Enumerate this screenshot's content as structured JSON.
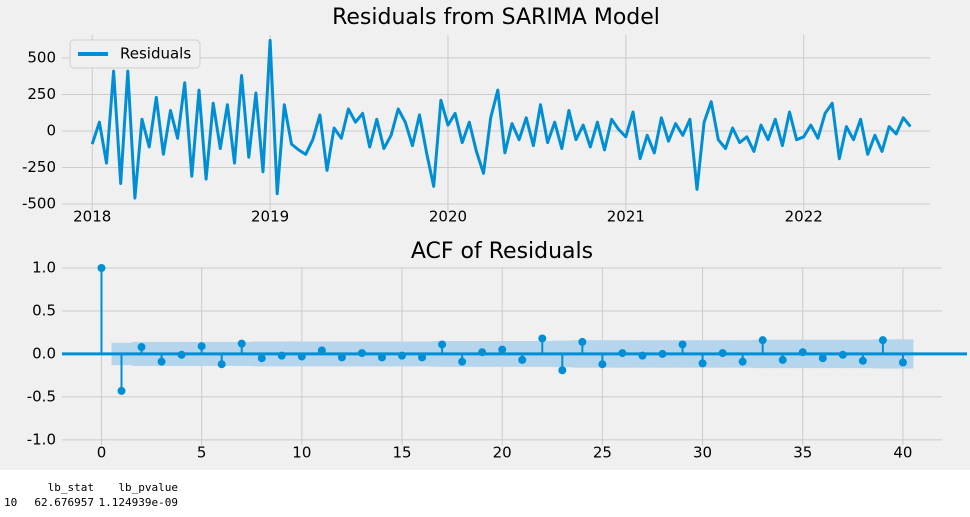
{
  "chart_data": [
    {
      "type": "line",
      "title": "Residuals from SARIMA Model",
      "x": [
        2018.0,
        2018.04,
        2018.08,
        2018.12,
        2018.16,
        2018.2,
        2018.24,
        2018.28,
        2018.32,
        2018.36,
        2018.4,
        2018.44,
        2018.48,
        2018.52,
        2018.56,
        2018.6,
        2018.64,
        2018.68,
        2018.72,
        2018.76,
        2018.8,
        2018.84,
        2018.88,
        2018.92,
        2018.96,
        2019.0,
        2019.04,
        2019.08,
        2019.12,
        2019.16,
        2019.2,
        2019.24,
        2019.28,
        2019.32,
        2019.36,
        2019.4,
        2019.44,
        2019.48,
        2019.52,
        2019.56,
        2019.6,
        2019.64,
        2019.68,
        2019.72,
        2019.76,
        2019.8,
        2019.84,
        2019.88,
        2019.92,
        2019.96,
        2020.0,
        2020.04,
        2020.08,
        2020.12,
        2020.16,
        2020.2,
        2020.24,
        2020.28,
        2020.32,
        2020.36,
        2020.4,
        2020.44,
        2020.48,
        2020.52,
        2020.56,
        2020.6,
        2020.64,
        2020.68,
        2020.72,
        2020.76,
        2020.8,
        2020.84,
        2020.88,
        2020.92,
        2020.96,
        2021.0,
        2021.04,
        2021.08,
        2021.12,
        2021.16,
        2021.2,
        2021.24,
        2021.28,
        2021.32,
        2021.36,
        2021.4,
        2021.44,
        2021.48,
        2021.52,
        2021.56,
        2021.6,
        2021.64,
        2021.68,
        2021.72,
        2021.76,
        2021.8,
        2021.84,
        2021.88,
        2021.92,
        2021.96,
        2022.0,
        2022.04,
        2022.08,
        2022.12,
        2022.16,
        2022.2,
        2022.24,
        2022.28,
        2022.32,
        2022.36,
        2022.4,
        2022.44,
        2022.48,
        2022.52,
        2022.56,
        2022.6
      ],
      "series": [
        {
          "name": "Residuals",
          "color": "#008fd5",
          "values": [
            -90,
            60,
            -220,
            410,
            -360,
            410,
            -460,
            80,
            -110,
            230,
            -160,
            140,
            -50,
            330,
            -310,
            280,
            -330,
            190,
            -120,
            180,
            -220,
            380,
            -180,
            260,
            -280,
            620,
            -430,
            180,
            -90,
            -130,
            -160,
            -60,
            110,
            -270,
            20,
            -50,
            150,
            60,
            120,
            -110,
            80,
            -120,
            -30,
            150,
            60,
            -100,
            110,
            -150,
            -380,
            210,
            40,
            120,
            -80,
            60,
            -140,
            -290,
            90,
            280,
            -150,
            50,
            -60,
            90,
            -100,
            180,
            -80,
            60,
            -120,
            140,
            -60,
            40,
            -110,
            60,
            -130,
            80,
            10,
            -40,
            130,
            -190,
            -30,
            -150,
            90,
            -70,
            50,
            -30,
            80,
            -400,
            60,
            200,
            -60,
            -120,
            20,
            -80,
            -40,
            -140,
            40,
            -60,
            80,
            -100,
            130,
            -60,
            -40,
            40,
            -50,
            120,
            190,
            -190,
            30,
            -60,
            80,
            -160,
            -30,
            -140,
            30,
            -20,
            90,
            30
          ]
        }
      ],
      "xlim": [
        2017.83,
        2022.71
      ],
      "xticks": [
        2018,
        2019,
        2020,
        2021,
        2022
      ],
      "ylim": [
        -555,
        657
      ],
      "yticks": [
        -500,
        -250,
        0,
        250,
        500
      ],
      "grid": true,
      "legend": "upper left"
    },
    {
      "type": "stem",
      "title": "ACF of Residuals",
      "x": [
        0,
        1,
        2,
        3,
        4,
        5,
        6,
        7,
        8,
        9,
        10,
        11,
        12,
        13,
        14,
        15,
        16,
        17,
        18,
        19,
        20,
        21,
        22,
        23,
        24,
        25,
        26,
        27,
        28,
        29,
        30,
        31,
        32,
        33,
        34,
        35,
        36,
        37,
        38,
        39,
        40
      ],
      "values": [
        1.0,
        -0.43,
        0.08,
        -0.09,
        -0.01,
        0.09,
        -0.12,
        0.12,
        -0.05,
        -0.02,
        -0.03,
        0.04,
        -0.04,
        0.01,
        -0.04,
        -0.02,
        -0.04,
        0.11,
        -0.09,
        0.02,
        0.05,
        -0.07,
        0.18,
        -0.19,
        0.14,
        -0.12,
        0.01,
        -0.02,
        0.0,
        0.11,
        -0.11,
        0.01,
        -0.09,
        0.16,
        -0.07,
        0.02,
        -0.05,
        -0.01,
        -0.08,
        0.16,
        -0.1
      ],
      "color": "#008fd5",
      "ci": [
        null,
        0.13,
        0.14,
        0.14,
        0.14,
        0.14,
        0.14,
        0.14,
        0.145,
        0.145,
        0.145,
        0.145,
        0.145,
        0.145,
        0.145,
        0.145,
        0.145,
        0.15,
        0.15,
        0.15,
        0.15,
        0.15,
        0.15,
        0.155,
        0.16,
        0.16,
        0.16,
        0.16,
        0.16,
        0.16,
        0.16,
        0.16,
        0.16,
        0.165,
        0.165,
        0.165,
        0.165,
        0.165,
        0.165,
        0.17,
        0.17
      ],
      "ci_color": "#b5d5ec",
      "xlim": [
        -1.97,
        41.95
      ],
      "xticks": [
        0,
        5,
        10,
        15,
        20,
        25,
        30,
        35,
        40
      ],
      "ylim": [
        -1.06,
        1.0
      ],
      "yticks": [
        {
          "value": -1.0,
          "label": "-1.0"
        },
        -0.5,
        {
          "value": 0.0,
          "label": "0.0"
        },
        0.5,
        {
          "value": 1.0,
          "label": "1.0"
        }
      ],
      "grid": true
    }
  ],
  "output_table": {
    "columns": [
      "lb_stat",
      "lb_pvalue"
    ],
    "rows": [
      [
        "10",
        "62.676957",
        "1.124939e-09"
      ]
    ]
  }
}
